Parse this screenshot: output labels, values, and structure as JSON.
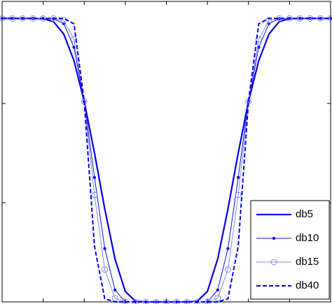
{
  "chart_data": {
    "type": "line",
    "x": [
      0,
      0.25,
      0.5,
      0.75,
      1,
      1.25,
      1.5,
      1.75,
      2,
      2.25,
      2.5,
      2.75,
      3,
      3.25,
      3.5,
      3.75,
      4,
      4.25,
      4.5,
      4.75,
      5,
      5.25,
      5.5,
      5.75,
      6,
      6.25,
      6.5,
      6.75,
      7,
      7.25,
      7.5,
      7.75,
      8
    ],
    "series": [
      {
        "name": "db5",
        "color": "#0000e6",
        "line_style": "solid",
        "marker": "none",
        "width": 2.2,
        "values": [
          1,
          1,
          1,
          1,
          0.999,
          0.989,
          0.945,
          0.851,
          0.707,
          0.525,
          0.328,
          0.151,
          0.037,
          0.002,
          0,
          0,
          0,
          0,
          0,
          0.002,
          0.037,
          0.151,
          0.328,
          0.525,
          0.707,
          0.851,
          0.945,
          0.989,
          0.999,
          1,
          1,
          1,
          1
        ]
      },
      {
        "name": "db10",
        "color": "#1010e0",
        "line_style": "solid",
        "marker": "dot",
        "width": 1,
        "values": [
          1,
          1,
          1,
          1,
          1,
          0.999,
          0.982,
          0.898,
          0.707,
          0.439,
          0.188,
          0.042,
          0,
          0,
          0,
          0,
          0,
          0,
          0,
          0,
          0,
          0.042,
          0.188,
          0.439,
          0.707,
          0.898,
          0.982,
          0.999,
          1,
          1,
          1,
          1,
          1
        ]
      },
      {
        "name": "db15",
        "color": "#7f8cf2",
        "line_style": "solid",
        "marker": "circle",
        "width": 1,
        "values": [
          1,
          1,
          1,
          1,
          1,
          1,
          0.994,
          0.926,
          0.707,
          0.377,
          0.114,
          0.013,
          0,
          0,
          0,
          0,
          0,
          0,
          0,
          0,
          0,
          0.013,
          0.114,
          0.377,
          0.707,
          0.926,
          0.994,
          1,
          1,
          1,
          1,
          1,
          1
        ]
      },
      {
        "name": "db40",
        "color": "#0000e6",
        "line_style": "dash",
        "marker": "none",
        "width": 2,
        "values": [
          1,
          1,
          1,
          1,
          1,
          1,
          1,
          0.981,
          0.707,
          0.196,
          0.011,
          0,
          0,
          0,
          0,
          0,
          0,
          0,
          0,
          0,
          0,
          0,
          0.011,
          0.196,
          0.707,
          0.981,
          1,
          1,
          1,
          1,
          1,
          1,
          1
        ]
      }
    ],
    "xlim": [
      0,
      8
    ],
    "xticks": [
      1,
      2,
      3,
      4,
      5,
      6,
      7
    ],
    "ylim": [
      0,
      1.06
    ],
    "yticks": [
      0.35,
      0.7
    ],
    "legend": "lower right"
  }
}
